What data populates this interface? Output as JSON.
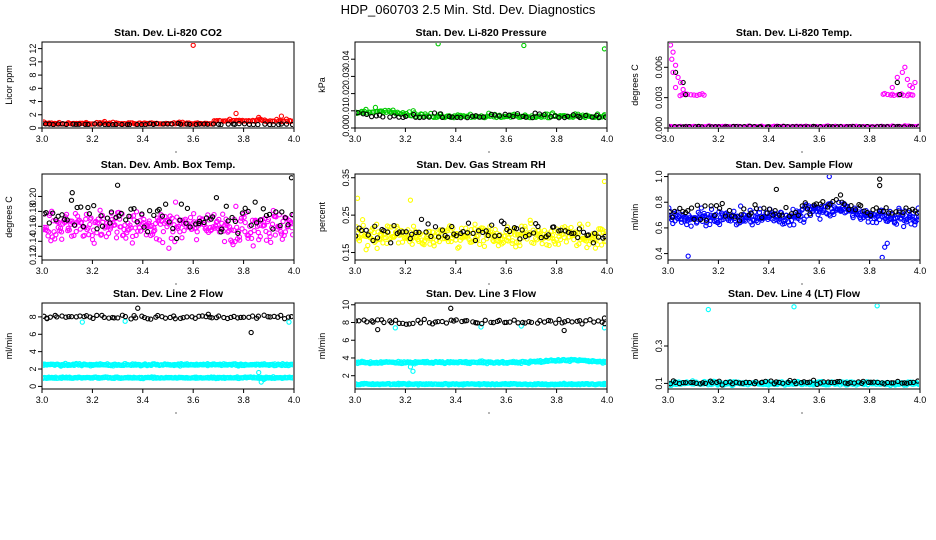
{
  "figure_title": "HDP_060703  2.5 Min. Std. Dev. Diagnostics",
  "colors": {
    "black": "#000000",
    "red": "#ff0000",
    "green": "#00cc00",
    "magenta": "#ff00ff",
    "yellow": "#ffff00",
    "blue": "#0000ff",
    "cyan": "#00ffff"
  },
  "chart_data": [
    {
      "type": "scatter",
      "title": "Stan. Dev. Li-820 CO2",
      "ylabel": "Licor ppm",
      "xlabel": "",
      "xlim": [
        3.0,
        4.0
      ],
      "ylim": [
        0,
        13
      ],
      "xticks": [
        "3.0",
        "3.2",
        "3.4",
        "3.6",
        "3.8",
        "4.0"
      ],
      "yticks": [
        "0",
        "2",
        "4",
        "6",
        "8",
        "10",
        "12"
      ],
      "series": [
        {
          "name": "red",
          "color": "red",
          "base": 0.6,
          "spread": 0.3,
          "n": 150,
          "x_range": [
            3.0,
            4.0
          ],
          "level_shift": {
            "from": 3.68,
            "base": 1.0
          },
          "outliers": [
            [
              3.6,
              12.5
            ],
            [
              3.77,
              2.2
            ],
            [
              3.95,
              1.8
            ],
            [
              3.86,
              1.6
            ]
          ]
        },
        {
          "name": "black",
          "color": "black",
          "base": 0.5,
          "spread": 0.2,
          "n": 55,
          "x_range": [
            3.0,
            4.0
          ]
        }
      ]
    },
    {
      "type": "scatter",
      "title": "Stan. Dev. Li-820 Pressure",
      "ylabel": "kPa",
      "xlabel": "",
      "xlim": [
        3.0,
        4.0
      ],
      "ylim": [
        0,
        0.05
      ],
      "xticks": [
        "3.0",
        "3.2",
        "3.4",
        "3.6",
        "3.8",
        "4.0"
      ],
      "yticks": [
        "0.00",
        "0.01",
        "0.02",
        "0.03",
        "0.04"
      ],
      "series": [
        {
          "name": "green",
          "color": "green",
          "base": 0.006,
          "spread": 0.003,
          "n": 170,
          "x_range": [
            3.0,
            4.0
          ],
          "wave": {
            "amp": 0.003,
            "center": 3.1
          },
          "outliers": [
            [
              3.33,
              0.049
            ],
            [
              3.67,
              0.048
            ],
            [
              3.99,
              0.046
            ]
          ]
        },
        {
          "name": "black",
          "color": "black",
          "base": 0.006,
          "spread": 0.003,
          "n": 55,
          "x_range": [
            3.0,
            4.0
          ]
        }
      ]
    },
    {
      "type": "scatter",
      "title": "Stan. Dev. Li-820 Temp.",
      "ylabel": "degrees C",
      "xlabel": "",
      "xlim": [
        3.0,
        4.0
      ],
      "ylim": [
        0,
        0.0085
      ],
      "xticks": [
        "3.0",
        "3.2",
        "3.4",
        "3.6",
        "3.8",
        "4.0"
      ],
      "yticks": [
        "0.000",
        "0.003",
        "0.006"
      ],
      "series": [
        {
          "name": "magenta-base",
          "color": "magenta",
          "base": 0.0001,
          "spread": 0.0001,
          "n": 160,
          "x_range": [
            3.0,
            4.0
          ]
        },
        {
          "name": "magenta-band-left",
          "color": "magenta",
          "base": 0.0033,
          "spread": 0.0001,
          "n": 10,
          "x_range": [
            3.04,
            3.15
          ]
        },
        {
          "name": "magenta-band-right",
          "color": "magenta",
          "base": 0.0033,
          "spread": 0.0001,
          "n": 14,
          "x_range": [
            3.85,
            3.98
          ]
        },
        {
          "name": "black",
          "color": "black",
          "base": 0.0001,
          "spread": 5e-05,
          "n": 60,
          "x_range": [
            3.0,
            4.0
          ],
          "outliers": [
            [
              3.03,
              0.0055
            ],
            [
              3.06,
              0.0045
            ],
            [
              3.07,
              0.0033
            ],
            [
              3.91,
              0.0045
            ],
            [
              3.92,
              0.0033
            ]
          ]
        }
      ],
      "outlier_series": {
        "color": "magenta",
        "points": [
          [
            3.01,
            0.0082
          ],
          [
            3.02,
            0.0075
          ],
          [
            3.015,
            0.0068
          ],
          [
            3.03,
            0.0062
          ],
          [
            3.02,
            0.0055
          ],
          [
            3.04,
            0.005
          ],
          [
            3.05,
            0.0045
          ],
          [
            3.03,
            0.004
          ],
          [
            3.06,
            0.0038
          ],
          [
            3.91,
            0.005
          ],
          [
            3.93,
            0.0055
          ],
          [
            3.94,
            0.006
          ],
          [
            3.95,
            0.0048
          ],
          [
            3.96,
            0.0042
          ],
          [
            3.97,
            0.004
          ],
          [
            3.89,
            0.004
          ],
          [
            3.98,
            0.0045
          ]
        ]
      }
    },
    {
      "type": "scatter",
      "title": "Stan. Dev. Amb. Box Temp.",
      "ylabel": "degrees C",
      "xlabel": "",
      "xlim": [
        3.0,
        4.0
      ],
      "ylim": [
        0.115,
        0.23
      ],
      "xticks": [
        "3.0",
        "3.2",
        "3.4",
        "3.6",
        "3.8",
        "4.0"
      ],
      "yticks": [
        "0.12",
        "0.14",
        "0.16",
        "0.18",
        "0.20"
      ],
      "series": [
        {
          "name": "magenta",
          "color": "magenta",
          "base": 0.16,
          "spread": 0.022,
          "n": 320,
          "x_range": [
            3.0,
            4.0
          ]
        },
        {
          "name": "black",
          "color": "black",
          "base": 0.17,
          "spread": 0.02,
          "n": 80,
          "x_range": [
            3.0,
            4.0
          ],
          "outliers": [
            [
              3.3,
              0.215
            ],
            [
              3.99,
              0.225
            ],
            [
              3.12,
              0.205
            ]
          ]
        }
      ]
    },
    {
      "type": "scatter",
      "title": "Stan. Dev. Gas Stream RH",
      "ylabel": "percent",
      "xlabel": "",
      "xlim": [
        3.0,
        4.0
      ],
      "ylim": [
        0.13,
        0.36
      ],
      "xticks": [
        "3.0",
        "3.2",
        "3.4",
        "3.6",
        "3.8",
        "4.0"
      ],
      "yticks": [
        "0.15",
        "0.25",
        "0.35"
      ],
      "series": [
        {
          "name": "yellow",
          "color": "yellow",
          "base": 0.195,
          "spread": 0.03,
          "n": 320,
          "x_range": [
            3.0,
            4.0
          ],
          "outliers": [
            [
              3.99,
              0.34
            ],
            [
              3.01,
              0.295
            ],
            [
              3.22,
              0.29
            ]
          ]
        },
        {
          "name": "black",
          "color": "black",
          "base": 0.205,
          "spread": 0.03,
          "n": 80,
          "x_range": [
            3.0,
            4.0
          ]
        }
      ]
    },
    {
      "type": "scatter",
      "title": "Stan. Dev. Sample Flow",
      "ylabel": "ml/min",
      "xlabel": "",
      "xlim": [
        3.0,
        4.0
      ],
      "ylim": [
        0.35,
        1.02
      ],
      "xticks": [
        "3.0",
        "3.2",
        "3.4",
        "3.6",
        "3.8",
        "4.0"
      ],
      "yticks": [
        "0.4",
        "0.6",
        "0.8",
        "1.0"
      ],
      "series": [
        {
          "name": "blue",
          "color": "blue",
          "base": 0.68,
          "spread": 0.06,
          "n": 330,
          "x_range": [
            3.0,
            4.0
          ],
          "wave": {
            "amp": 0.08,
            "center": 3.65
          },
          "outliers": [
            [
              3.08,
              0.38
            ],
            [
              3.85,
              0.37
            ],
            [
              3.86,
              0.45
            ],
            [
              3.87,
              0.48
            ],
            [
              3.64,
              1.0
            ]
          ]
        },
        {
          "name": "black",
          "color": "black",
          "base": 0.72,
          "spread": 0.06,
          "n": 80,
          "x_range": [
            3.0,
            4.0
          ],
          "wave": {
            "amp": 0.08,
            "center": 3.65
          },
          "outliers": [
            [
              3.84,
              0.98
            ],
            [
              3.84,
              0.93
            ],
            [
              3.43,
              0.9
            ]
          ]
        }
      ]
    },
    {
      "type": "scatter",
      "title": "Stan. Dev. Line 2 Flow",
      "ylabel": "ml/min",
      "xlabel": "",
      "xlim": [
        3.0,
        4.0
      ],
      "ylim": [
        -0.3,
        9.6
      ],
      "xticks": [
        "3.0",
        "3.2",
        "3.4",
        "3.6",
        "3.8",
        "4.0"
      ],
      "yticks": [
        "0",
        "2",
        "4",
        "6",
        "8"
      ],
      "series": [
        {
          "name": "cyan-upper",
          "color": "cyan",
          "base": 2.5,
          "spread": 0.12,
          "n": 260,
          "x_range": [
            3.0,
            4.0
          ],
          "outliers": [
            [
              3.16,
              7.4
            ],
            [
              3.33,
              7.5
            ],
            [
              3.98,
              7.4
            ],
            [
              3.87,
              0.5
            ],
            [
              3.86,
              1.6
            ],
            [
              3.88,
              0.8
            ]
          ]
        },
        {
          "name": "cyan-lower",
          "color": "cyan",
          "base": 1.0,
          "spread": 0.08,
          "n": 260,
          "x_range": [
            3.0,
            4.0
          ]
        },
        {
          "name": "black",
          "color": "black",
          "base": 8.0,
          "spread": 0.25,
          "n": 70,
          "x_range": [
            3.0,
            4.0
          ],
          "outliers": [
            [
              3.83,
              6.2
            ],
            [
              3.38,
              9.0
            ],
            [
              3.02,
              7.8
            ],
            [
              3.66,
              8.3
            ]
          ]
        }
      ]
    },
    {
      "type": "scatter",
      "title": "Stan. Dev. Line 3 Flow",
      "ylabel": "ml/min",
      "xlabel": "",
      "xlim": [
        3.0,
        4.0
      ],
      "ylim": [
        0.5,
        10.2
      ],
      "xticks": [
        "3.0",
        "3.2",
        "3.4",
        "3.6",
        "3.8",
        "4.0"
      ],
      "yticks": [
        "2",
        "4",
        "6",
        "8",
        "10"
      ],
      "series": [
        {
          "name": "cyan-upper",
          "color": "cyan",
          "base": 3.5,
          "spread": 0.12,
          "n": 260,
          "x_range": [
            3.0,
            4.0
          ],
          "wave": {
            "amp": 0.25,
            "center": 3.85
          },
          "outliers": [
            [
              3.16,
              7.4
            ],
            [
              3.5,
              7.5
            ],
            [
              3.66,
              7.6
            ],
            [
              3.99,
              7.4
            ],
            [
              3.23,
              2.5
            ],
            [
              3.22,
              3.0
            ]
          ]
        },
        {
          "name": "cyan-lower",
          "color": "cyan",
          "base": 1.05,
          "spread": 0.08,
          "n": 260,
          "x_range": [
            3.0,
            4.0
          ]
        },
        {
          "name": "black",
          "color": "black",
          "base": 8.1,
          "spread": 0.25,
          "n": 70,
          "x_range": [
            3.0,
            4.0
          ],
          "outliers": [
            [
              3.38,
              9.6
            ],
            [
              3.83,
              7.1
            ],
            [
              3.09,
              7.2
            ],
            [
              3.99,
              8.5
            ]
          ]
        }
      ]
    },
    {
      "type": "scatter",
      "title": "Stan. Dev. Line 4 (LT) Flow",
      "ylabel": "ml/min",
      "xlabel": "",
      "xlim": [
        3.0,
        4.0
      ],
      "ylim": [
        0.07,
        0.53
      ],
      "xticks": [
        "3.0",
        "3.2",
        "3.4",
        "3.6",
        "3.8",
        "4.0"
      ],
      "yticks": [
        "0.1",
        "0.3"
      ],
      "series": [
        {
          "name": "cyan",
          "color": "cyan",
          "base": 0.1,
          "spread": 0.01,
          "n": 330,
          "x_range": [
            3.0,
            4.0
          ],
          "outliers": [
            [
              3.16,
              0.495
            ],
            [
              3.5,
              0.51
            ],
            [
              3.83,
              0.515
            ]
          ]
        },
        {
          "name": "black",
          "color": "black",
          "base": 0.105,
          "spread": 0.01,
          "n": 75,
          "x_range": [
            3.0,
            4.0
          ]
        }
      ]
    }
  ]
}
